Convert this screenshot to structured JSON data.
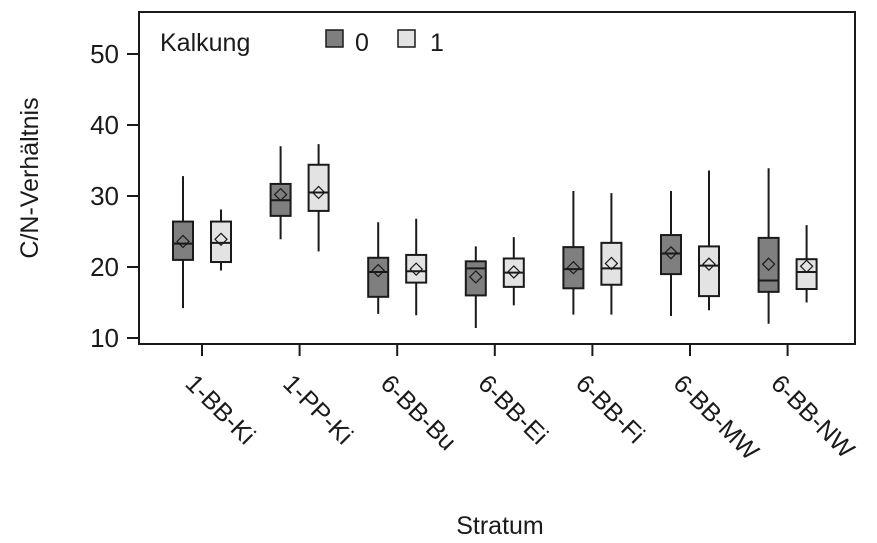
{
  "chart_data": {
    "type": "boxplot",
    "title": "",
    "xlabel": "Stratum",
    "ylabel": "C/N-Verhältnis",
    "ylim": [
      10,
      55
    ],
    "yticks": [
      10,
      20,
      30,
      40,
      50
    ],
    "grid": false,
    "legend": {
      "title": "Kalkung",
      "placement": "top-left",
      "entries": [
        {
          "label": "0",
          "color": "#7f7f7f"
        },
        {
          "label": "1",
          "color": "#e3e3e3"
        }
      ]
    },
    "categories": [
      "1-BB-Ki",
      "1-PP-Ki",
      "6-BB-Bu",
      "6-BB-Ei",
      "6-BB-Fi",
      "6-BB-MW",
      "6-BB-NW"
    ],
    "series": [
      {
        "name": "0",
        "color": "#7f7f7f",
        "boxes": [
          {
            "whisker_low": 14.2,
            "q1": 21.0,
            "median": 23.3,
            "q3": 26.4,
            "whisker_high": 32.8,
            "mean": 23.6
          },
          {
            "whisker_low": 23.9,
            "q1": 27.2,
            "median": 29.4,
            "q3": 31.7,
            "whisker_high": 37.0,
            "mean": 30.2
          },
          {
            "whisker_low": 13.4,
            "q1": 15.8,
            "median": 19.3,
            "q3": 21.3,
            "whisker_high": 26.3,
            "mean": 19.5
          },
          {
            "whisker_low": 11.4,
            "q1": 16.0,
            "median": 19.8,
            "q3": 20.8,
            "whisker_high": 22.9,
            "mean": 18.6
          },
          {
            "whisker_low": 13.3,
            "q1": 17.0,
            "median": 19.7,
            "q3": 22.8,
            "whisker_high": 30.7,
            "mean": 19.9
          },
          {
            "whisker_low": 13.1,
            "q1": 19.0,
            "median": 21.9,
            "q3": 24.5,
            "whisker_high": 30.7,
            "mean": 22.0
          },
          {
            "whisker_low": 12.0,
            "q1": 16.5,
            "median": 18.1,
            "q3": 24.1,
            "whisker_high": 33.9,
            "mean": 20.4
          }
        ]
      },
      {
        "name": "1",
        "color": "#e3e3e3",
        "boxes": [
          {
            "whisker_low": 19.5,
            "q1": 20.7,
            "median": 23.4,
            "q3": 26.4,
            "whisker_high": 28.1,
            "mean": 23.9
          },
          {
            "whisker_low": 22.2,
            "q1": 27.9,
            "median": 30.5,
            "q3": 34.4,
            "whisker_high": 37.3,
            "mean": 30.5
          },
          {
            "whisker_low": 13.2,
            "q1": 17.8,
            "median": 19.4,
            "q3": 21.7,
            "whisker_high": 26.8,
            "mean": 19.7
          },
          {
            "whisker_low": 14.6,
            "q1": 17.2,
            "median": 19.2,
            "q3": 21.2,
            "whisker_high": 24.2,
            "mean": 19.3
          },
          {
            "whisker_low": 13.3,
            "q1": 17.5,
            "median": 19.8,
            "q3": 23.4,
            "whisker_high": 30.4,
            "mean": 20.5
          },
          {
            "whisker_low": 13.9,
            "q1": 15.9,
            "median": 20.2,
            "q3": 22.9,
            "whisker_high": 33.6,
            "mean": 20.4
          },
          {
            "whisker_low": 15.0,
            "q1": 16.9,
            "median": 19.3,
            "q3": 21.1,
            "whisker_high": 25.9,
            "mean": 20.1
          }
        ]
      }
    ]
  }
}
